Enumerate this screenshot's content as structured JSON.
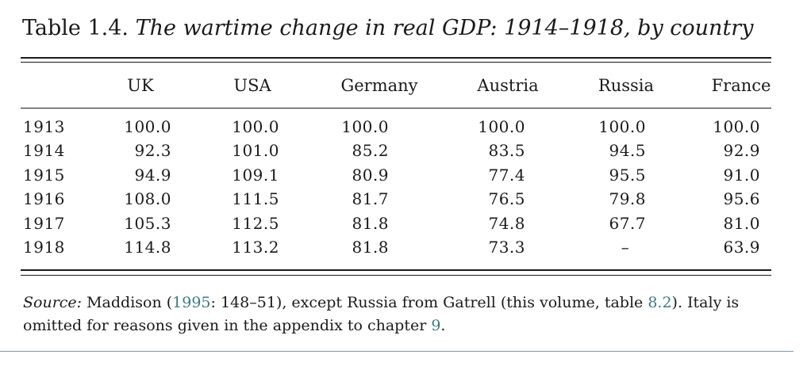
{
  "caption": {
    "number": "Table 1.4.",
    "title": "The wartime change in real GDP: 1914–1918, by country"
  },
  "columns": [
    "UK",
    "USA",
    "Germany",
    "Austria",
    "Russia",
    "France"
  ],
  "rows": [
    {
      "year": "1913",
      "values": [
        "100.0",
        "100.0",
        "100.0",
        "100.0",
        "100.0",
        "100.0"
      ]
    },
    {
      "year": "1914",
      "values": [
        "92.3",
        "101.0",
        "85.2",
        "83.5",
        "94.5",
        "92.9"
      ]
    },
    {
      "year": "1915",
      "values": [
        "94.9",
        "109.1",
        "80.9",
        "77.4",
        "95.5",
        "91.0"
      ]
    },
    {
      "year": "1916",
      "values": [
        "108.0",
        "111.5",
        "81.7",
        "76.5",
        "79.8",
        "95.6"
      ]
    },
    {
      "year": "1917",
      "values": [
        "105.3",
        "112.5",
        "81.8",
        "74.8",
        "67.7",
        "81.0"
      ]
    },
    {
      "year": "1918",
      "values": [
        "114.8",
        "113.2",
        "81.8",
        "73.3",
        "–",
        "63.9"
      ]
    }
  ],
  "source": {
    "label": "Source:",
    "text1": " Maddison (",
    "link1": "1995",
    "text2": ": 148–51), except Russia from Gatrell (this volume, table ",
    "link2": "8.2",
    "text3": "). Italy is omitted for reasons given in the appendix to chapter ",
    "link3": "9",
    "text4": "."
  }
}
